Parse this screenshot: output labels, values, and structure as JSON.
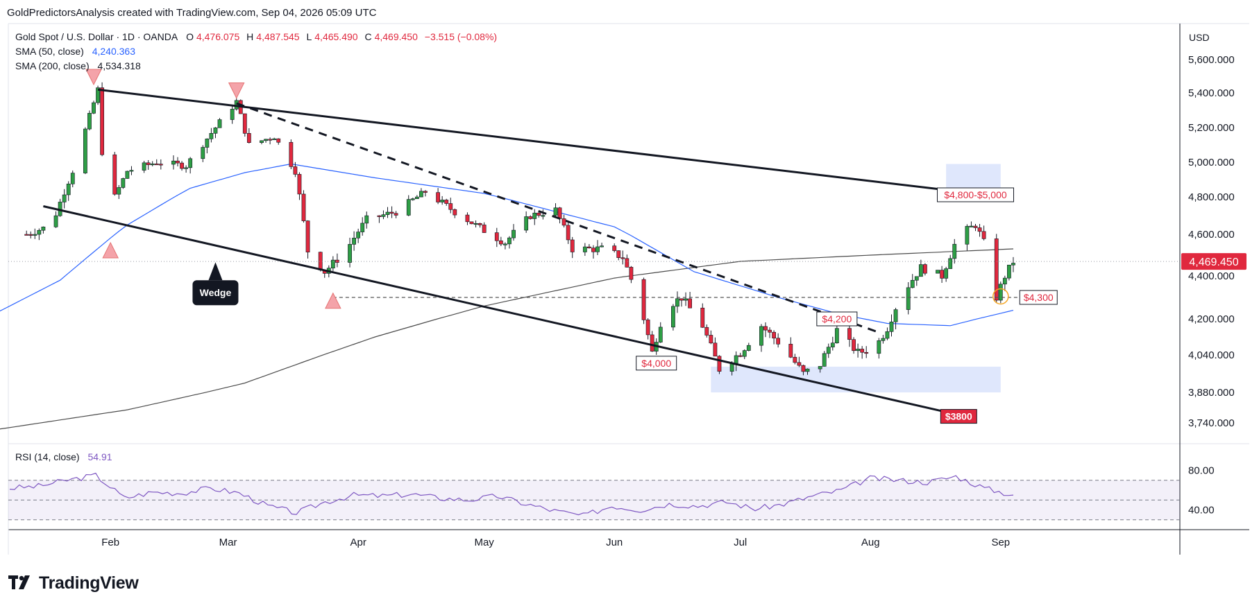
{
  "attribution": "GoldPredictorsAnalysis created with TradingView.com, Sep 04, 2026 05:09 UTC",
  "legend": {
    "symbol": "Gold Spot / U.S. Dollar · 1D · OANDA",
    "open_label": "O",
    "open": "4,476.075",
    "high_label": "H",
    "high": "4,487.545",
    "low_label": "L",
    "low": "4,465.490",
    "close_label": "C",
    "close": "4,469.450",
    "change": "−3.515 (−0.08%)",
    "sma50_label": "SMA (50, close)",
    "sma50_value": "4,240.363",
    "sma200_label": "SMA (200, close)",
    "sma200_value": "4,534.318",
    "rsi_label": "RSI (14, close)",
    "rsi_value": "54.91"
  },
  "currency": "USD",
  "last_price_tag": "4,469.450",
  "annotations": {
    "wedge": "Wedge",
    "target_zone": "$4,800-$5,000",
    "support_4300": "$4,300",
    "level_4200": "$4,200",
    "level_4000": "$4,000",
    "target_3800": "$3800"
  },
  "logo": "TradingView",
  "colors": {
    "up": "#26a69a",
    "up_body": "#2e9e45",
    "down": "#e0283e",
    "sma50": "#2962ff",
    "sma200": "#4a4a4a",
    "rsi": "#7e57c2",
    "zone": "#dbe4fc"
  },
  "chart_data": {
    "type": "candlestick",
    "title": "Gold Spot / U.S. Dollar · 1D · OANDA",
    "xlabel": "",
    "ylabel": "",
    "x_tick_labels": [
      "Feb",
      "Mar",
      "Apr",
      "May",
      "Jun",
      "Jul",
      "Aug",
      "Sep"
    ],
    "price_ticks": [
      5600,
      5400,
      5200,
      5000,
      4800,
      4600,
      4400,
      4200,
      4040,
      3880,
      3740
    ],
    "price_tick_labels": [
      "5,600.000",
      "5,400.000",
      "5,200.000",
      "5,000.000",
      "4,800.000",
      "4,600.000",
      "4,400.000",
      "4,200.000",
      "4,040.000",
      "3,880.000",
      "3,740.000"
    ],
    "ylim": [
      3700,
      5700
    ],
    "last_close": 4469.45,
    "series": [
      {
        "name": "Gold Spot / U.S. Dollar",
        "waypoints": [
          [
            "2026-01-12",
            4600
          ],
          [
            "2026-01-18",
            4650
          ],
          [
            "2026-01-23",
            4950
          ],
          [
            "2026-01-29",
            5420
          ],
          [
            "2026-01-31",
            4700
          ],
          [
            "2026-02-05",
            4950
          ],
          [
            "2026-02-12",
            5000
          ],
          [
            "2026-02-19",
            4980
          ],
          [
            "2026-02-26",
            5200
          ],
          [
            "2026-03-03",
            5350
          ],
          [
            "2026-03-06",
            5100
          ],
          [
            "2026-03-12",
            5150
          ],
          [
            "2026-03-17",
            4950
          ],
          [
            "2026-03-20",
            4520
          ],
          [
            "2026-03-24",
            4420
          ],
          [
            "2026-03-29",
            4520
          ],
          [
            "2026-04-03",
            4680
          ],
          [
            "2026-04-10",
            4720
          ],
          [
            "2026-04-17",
            4830
          ],
          [
            "2026-04-24",
            4720
          ],
          [
            "2026-05-01",
            4620
          ],
          [
            "2026-05-06",
            4560
          ],
          [
            "2026-05-12",
            4700
          ],
          [
            "2026-05-18",
            4730
          ],
          [
            "2026-05-22",
            4530
          ],
          [
            "2026-05-29",
            4530
          ],
          [
            "2026-06-03",
            4490
          ],
          [
            "2026-06-07",
            4280
          ],
          [
            "2026-06-10",
            4050
          ],
          [
            "2026-06-13",
            4250
          ],
          [
            "2026-06-17",
            4300
          ],
          [
            "2026-06-22",
            4170
          ],
          [
            "2026-06-26",
            3980
          ],
          [
            "2026-07-01",
            4050
          ],
          [
            "2026-07-06",
            4170
          ],
          [
            "2026-07-11",
            4080
          ],
          [
            "2026-07-16",
            3960
          ],
          [
            "2026-07-20",
            4000
          ],
          [
            "2026-07-24",
            4150
          ],
          [
            "2026-07-29",
            4050
          ],
          [
            "2026-08-02",
            4070
          ],
          [
            "2026-08-05",
            4160
          ],
          [
            "2026-08-08",
            4300
          ],
          [
            "2026-08-13",
            4440
          ],
          [
            "2026-08-18",
            4400
          ],
          [
            "2026-08-22",
            4600
          ],
          [
            "2026-08-26",
            4650
          ],
          [
            "2026-08-28",
            4560
          ],
          [
            "2026-08-31",
            4300
          ],
          [
            "2026-09-02",
            4400
          ],
          [
            "2026-09-04",
            4469
          ]
        ]
      },
      {
        "name": "SMA (50, close)",
        "waypoints": [
          [
            "2026-01-05",
            4230
          ],
          [
            "2026-01-20",
            4380
          ],
          [
            "2026-02-05",
            4650
          ],
          [
            "2026-02-20",
            4850
          ],
          [
            "2026-03-05",
            4940
          ],
          [
            "2026-03-16",
            4990
          ],
          [
            "2026-04-05",
            4910
          ],
          [
            "2026-05-01",
            4820
          ],
          [
            "2026-06-01",
            4640
          ],
          [
            "2026-06-20",
            4420
          ],
          [
            "2026-07-10",
            4300
          ],
          [
            "2026-07-25",
            4220
          ],
          [
            "2026-08-05",
            4180
          ],
          [
            "2026-08-20",
            4170
          ],
          [
            "2026-09-04",
            4240
          ]
        ]
      },
      {
        "name": "SMA (200, close)",
        "waypoints": [
          [
            "2026-01-05",
            3710
          ],
          [
            "2026-02-05",
            3800
          ],
          [
            "2026-03-05",
            3920
          ],
          [
            "2026-04-05",
            4120
          ],
          [
            "2026-05-01",
            4260
          ],
          [
            "2026-06-01",
            4390
          ],
          [
            "2026-07-01",
            4470
          ],
          [
            "2026-08-01",
            4500
          ],
          [
            "2026-09-04",
            4530
          ]
        ]
      },
      {
        "name": "RSI (14, close)",
        "values": [
          62,
          64,
          70,
          75,
          52,
          58,
          57,
          62,
          57,
          44,
          37,
          48,
          55,
          54,
          56,
          52,
          50,
          54,
          46,
          39,
          34,
          44,
          40,
          46,
          44,
          48,
          41,
          46,
          54,
          60,
          72,
          70,
          68,
          74,
          62,
          55
        ]
      }
    ],
    "rsi": {
      "ylim": [
        20,
        100
      ],
      "ticks": [
        80,
        40
      ],
      "tick_labels": [
        "80.00",
        "40.00"
      ],
      "bands": [
        70,
        50,
        30
      ]
    }
  }
}
